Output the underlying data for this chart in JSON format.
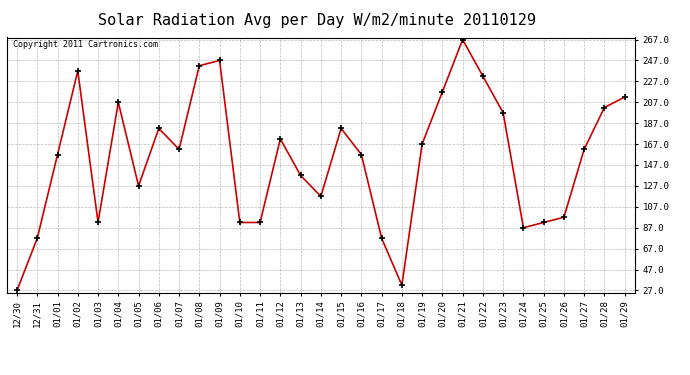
{
  "title": "Solar Radiation Avg per Day W/m2/minute 20110129",
  "copyright_text": "Copyright 2011 Cartronics.com",
  "x_labels": [
    "12/30",
    "12/31",
    "01/01",
    "01/02",
    "01/03",
    "01/04",
    "01/05",
    "01/06",
    "01/07",
    "01/08",
    "01/09",
    "01/10",
    "01/11",
    "01/12",
    "01/13",
    "01/14",
    "01/15",
    "01/16",
    "01/17",
    "01/18",
    "01/19",
    "01/20",
    "01/21",
    "01/22",
    "01/23",
    "01/24",
    "01/25",
    "01/26",
    "01/27",
    "01/28",
    "01/29"
  ],
  "y_values": [
    27.0,
    77.0,
    157.0,
    237.0,
    92.0,
    207.0,
    127.0,
    182.0,
    162.0,
    242.0,
    247.0,
    92.0,
    92.0,
    172.0,
    137.0,
    117.0,
    182.0,
    157.0,
    77.0,
    32.0,
    167.0,
    217.0,
    267.0,
    232.0,
    197.0,
    87.0,
    92.0,
    97.0,
    162.0,
    202.0,
    212.0
  ],
  "line_color": "#cc0000",
  "marker_color": "#000000",
  "background_color": "#ffffff",
  "grid_color": "#bbbbbb",
  "y_min": 27.0,
  "y_max": 267.0,
  "y_ticks": [
    27.0,
    47.0,
    67.0,
    87.0,
    107.0,
    127.0,
    147.0,
    167.0,
    187.0,
    207.0,
    227.0,
    247.0,
    267.0
  ],
  "title_fontsize": 11,
  "tick_fontsize": 6.5,
  "copyright_fontsize": 6
}
